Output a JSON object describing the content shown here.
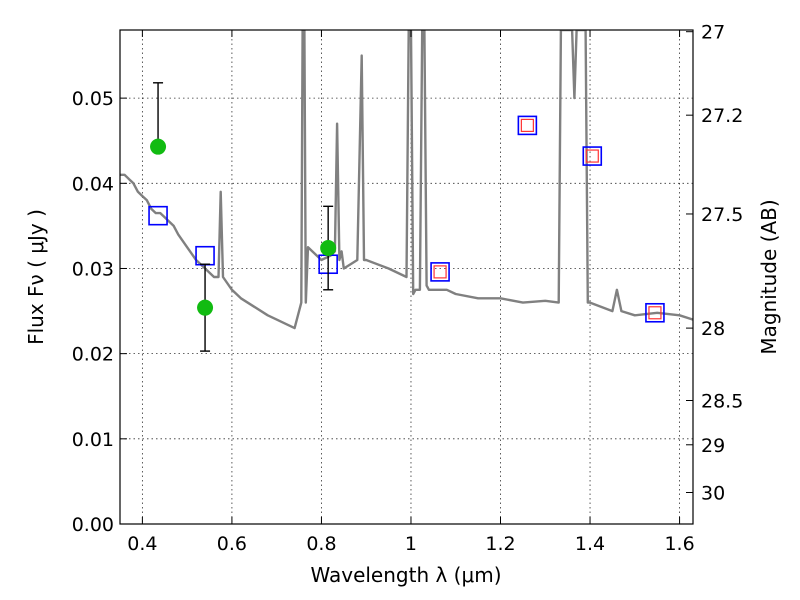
{
  "chart_data": {
    "type": "scatter",
    "title": "",
    "xlabel": "Wavelength  λ (μm)",
    "ylabel": "Flux  Fν  ( μJy )",
    "y2label": "Magnitude (AB)",
    "xlim": [
      0.35,
      1.63
    ],
    "ylim": [
      0.0,
      0.058
    ],
    "grid": true,
    "legend": "none",
    "x_ticks": [
      0.4,
      0.6,
      0.8,
      1.0,
      1.2,
      1.4,
      1.6
    ],
    "x_tick_labels": [
      "0.4",
      "0.6",
      "0.8",
      "1",
      "1.2",
      "1.4",
      "1.6"
    ],
    "y_ticks": [
      0.0,
      0.01,
      0.02,
      0.03,
      0.04,
      0.05
    ],
    "y_tick_labels": [
      "0.00",
      "0.01",
      "0.02",
      "0.03",
      "0.04",
      "0.05"
    ],
    "y2_ticks": [
      {
        "label": "27",
        "flux": 0.0578
      },
      {
        "label": "27.2",
        "flux": 0.048
      },
      {
        "label": "27.5",
        "flux": 0.0364
      },
      {
        "label": "28",
        "flux": 0.023
      },
      {
        "label": "28.5",
        "flux": 0.0145
      },
      {
        "label": "29",
        "flux": 0.0093
      },
      {
        "label": "30",
        "flux": 0.0037
      }
    ],
    "colors": {
      "model": "#808080",
      "observed": "#11bb11",
      "model_box": "#0000ff",
      "inner_box": "#ff3333",
      "errorbar": "#000000"
    },
    "series": [
      {
        "name": "model spectrum",
        "kind": "line",
        "x": [
          0.35,
          0.36,
          0.37,
          0.38,
          0.39,
          0.4,
          0.41,
          0.42,
          0.43,
          0.44,
          0.45,
          0.46,
          0.47,
          0.48,
          0.5,
          0.52,
          0.54,
          0.56,
          0.57,
          0.575,
          0.58,
          0.6,
          0.62,
          0.65,
          0.68,
          0.7,
          0.72,
          0.74,
          0.755,
          0.758,
          0.76,
          0.762,
          0.765,
          0.77,
          0.8,
          0.82,
          0.83,
          0.835,
          0.84,
          0.845,
          0.85,
          0.88,
          0.89,
          0.895,
          0.9,
          0.95,
          0.99,
          0.995,
          1.0,
          1.005,
          1.01,
          1.02,
          1.025,
          1.03,
          1.035,
          1.04,
          1.06,
          1.08,
          1.1,
          1.15,
          1.2,
          1.25,
          1.3,
          1.33,
          1.335,
          1.34,
          1.36,
          1.365,
          1.37,
          1.39,
          1.395,
          1.4,
          1.45,
          1.46,
          1.47,
          1.5,
          1.55,
          1.6,
          1.63
        ],
        "y": [
          0.041,
          0.041,
          0.0405,
          0.04,
          0.039,
          0.0385,
          0.038,
          0.037,
          0.0365,
          0.0365,
          0.036,
          0.0355,
          0.035,
          0.034,
          0.0325,
          0.031,
          0.03,
          0.029,
          0.029,
          0.039,
          0.029,
          0.0275,
          0.0265,
          0.0255,
          0.0245,
          0.024,
          0.0235,
          0.023,
          0.026,
          0.058,
          0.058,
          0.058,
          0.026,
          0.0325,
          0.031,
          0.0315,
          0.032,
          0.047,
          0.031,
          0.032,
          0.03,
          0.031,
          0.055,
          0.031,
          0.031,
          0.03,
          0.029,
          0.058,
          0.058,
          0.027,
          0.0275,
          0.0275,
          0.058,
          0.058,
          0.028,
          0.0275,
          0.0275,
          0.0275,
          0.027,
          0.0265,
          0.0265,
          0.026,
          0.0262,
          0.026,
          0.058,
          0.058,
          0.058,
          0.05,
          0.058,
          0.058,
          0.026,
          0.026,
          0.025,
          0.0275,
          0.025,
          0.0245,
          0.0248,
          0.0245,
          0.024
        ]
      },
      {
        "name": "observed",
        "kind": "points",
        "x": [
          0.435,
          0.54,
          0.815
        ],
        "y": [
          0.0443,
          0.0254,
          0.0324
        ],
        "yerr_low": [
          0.0443,
          0.0203,
          0.0275
        ],
        "yerr_high": [
          0.0518,
          0.0305,
          0.0373
        ]
      },
      {
        "name": "model photometry",
        "kind": "squares",
        "x": [
          0.435,
          0.54,
          0.815,
          1.065,
          1.26,
          1.405,
          1.545
        ],
        "y": [
          0.0362,
          0.0315,
          0.0305,
          0.0296,
          0.0468,
          0.0432,
          0.0248
        ]
      },
      {
        "name": "model photometry (inner)",
        "kind": "inner_squares",
        "x": [
          1.065,
          1.26,
          1.405,
          1.545
        ],
        "y": [
          0.0296,
          0.0468,
          0.0432,
          0.0248
        ]
      }
    ]
  }
}
